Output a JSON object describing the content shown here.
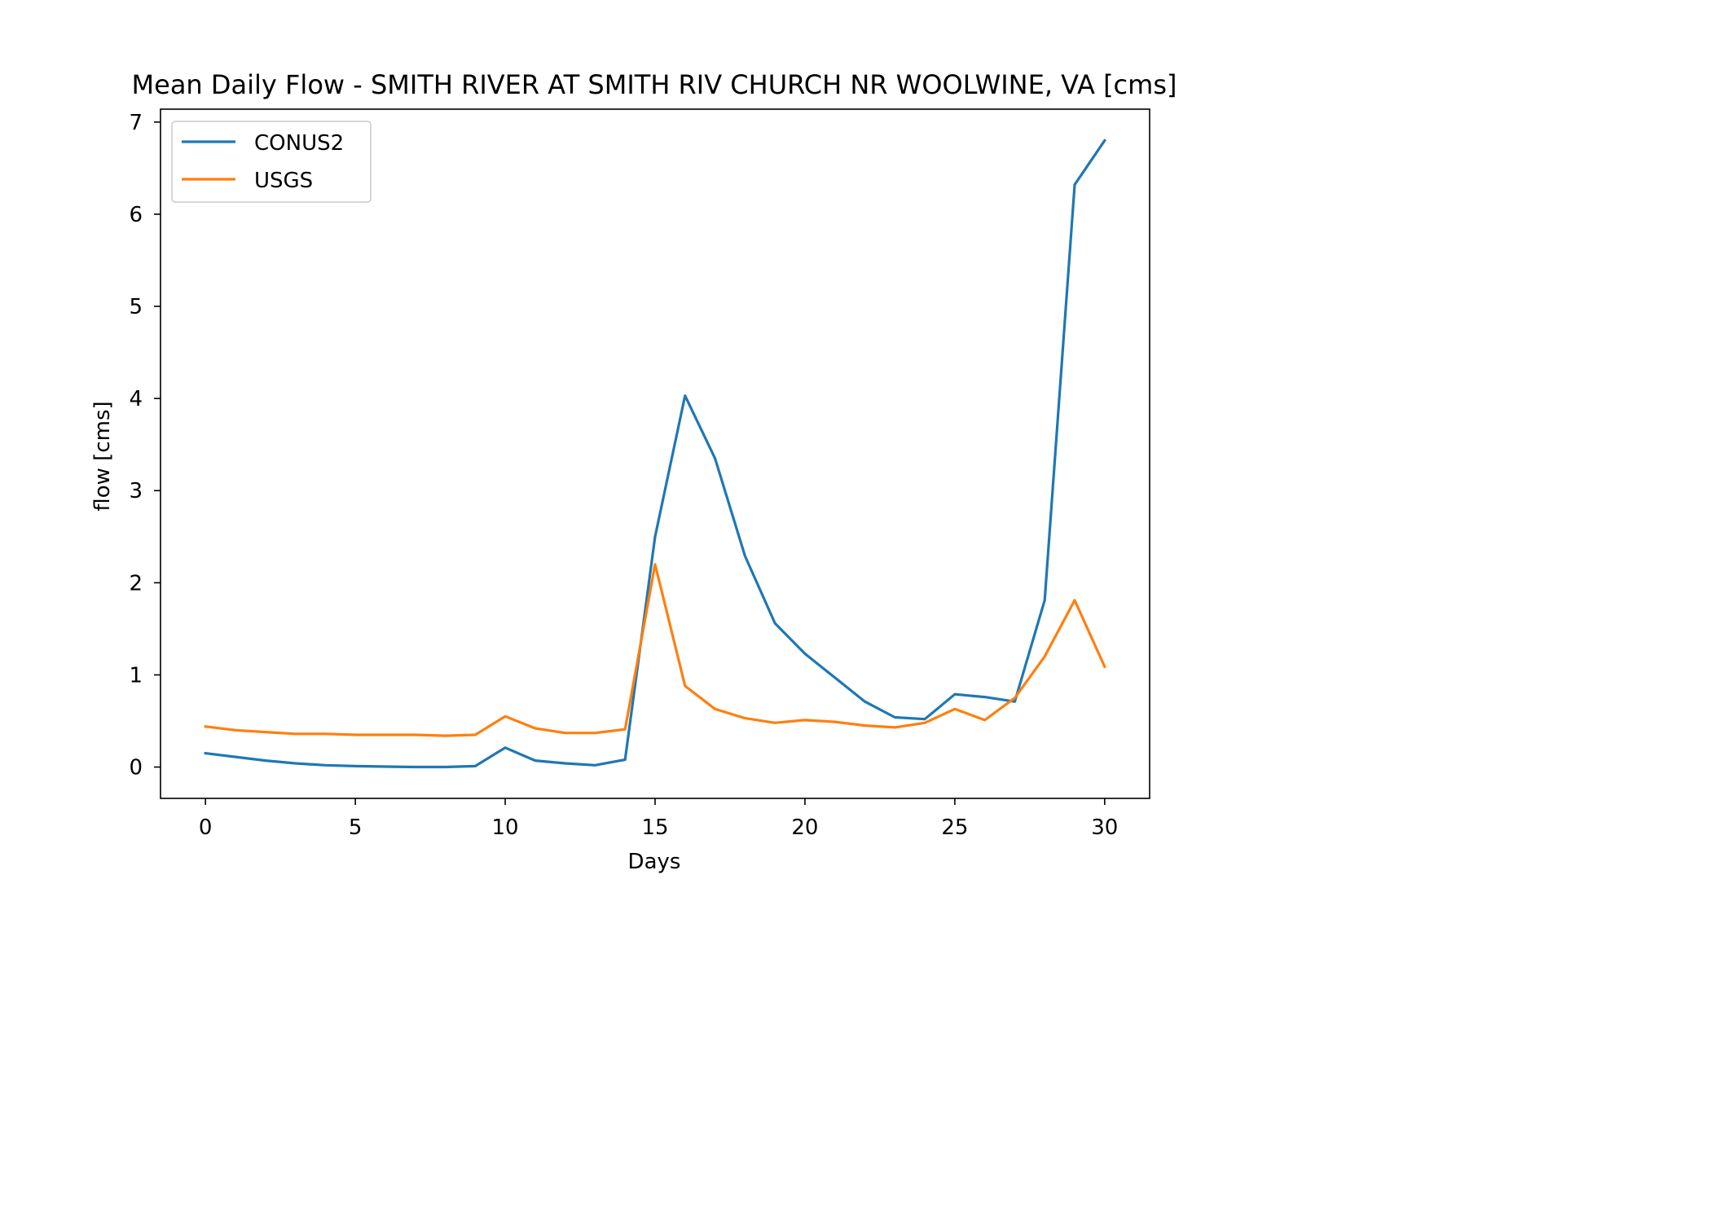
{
  "chart_data": {
    "type": "line",
    "title": "Mean Daily Flow - SMITH RIVER AT SMITH RIV CHURCH NR WOOLWINE, VA [cms]",
    "xlabel": "Days",
    "ylabel": "flow [cms]",
    "xlim": [
      -1.5,
      31.5
    ],
    "ylim": [
      -0.34,
      7.14
    ],
    "xticks": [
      0,
      5,
      10,
      15,
      20,
      25,
      30
    ],
    "xtick_labels": [
      "0",
      "5",
      "10",
      "15",
      "20",
      "25",
      "30"
    ],
    "yticks": [
      0,
      1,
      2,
      3,
      4,
      5,
      6,
      7
    ],
    "ytick_labels": [
      "0",
      "1",
      "2",
      "3",
      "4",
      "5",
      "6",
      "7"
    ],
    "grid": false,
    "legend_position": "upper-left",
    "x": [
      0,
      1,
      2,
      3,
      4,
      5,
      6,
      7,
      8,
      9,
      10,
      11,
      12,
      13,
      14,
      15,
      16,
      17,
      18,
      19,
      20,
      21,
      22,
      23,
      24,
      25,
      26,
      27,
      28,
      29,
      30
    ],
    "series": [
      {
        "name": "CONUS2",
        "color": "#1f77b4",
        "values": [
          0.15,
          0.11,
          0.07,
          0.04,
          0.02,
          0.01,
          0.005,
          0.0,
          0.0,
          0.01,
          0.21,
          0.07,
          0.04,
          0.02,
          0.08,
          2.5,
          4.03,
          3.35,
          2.29,
          1.56,
          1.23,
          0.97,
          0.71,
          0.54,
          0.52,
          0.79,
          0.76,
          0.71,
          1.81,
          6.32,
          6.8
        ]
      },
      {
        "name": "USGS",
        "color": "#ff7f0e",
        "values": [
          0.44,
          0.4,
          0.38,
          0.36,
          0.36,
          0.35,
          0.35,
          0.35,
          0.34,
          0.35,
          0.55,
          0.42,
          0.37,
          0.37,
          0.41,
          2.2,
          0.88,
          0.63,
          0.53,
          0.48,
          0.51,
          0.49,
          0.45,
          0.43,
          0.48,
          0.63,
          0.51,
          0.75,
          1.2,
          1.81,
          1.09
        ]
      }
    ]
  }
}
